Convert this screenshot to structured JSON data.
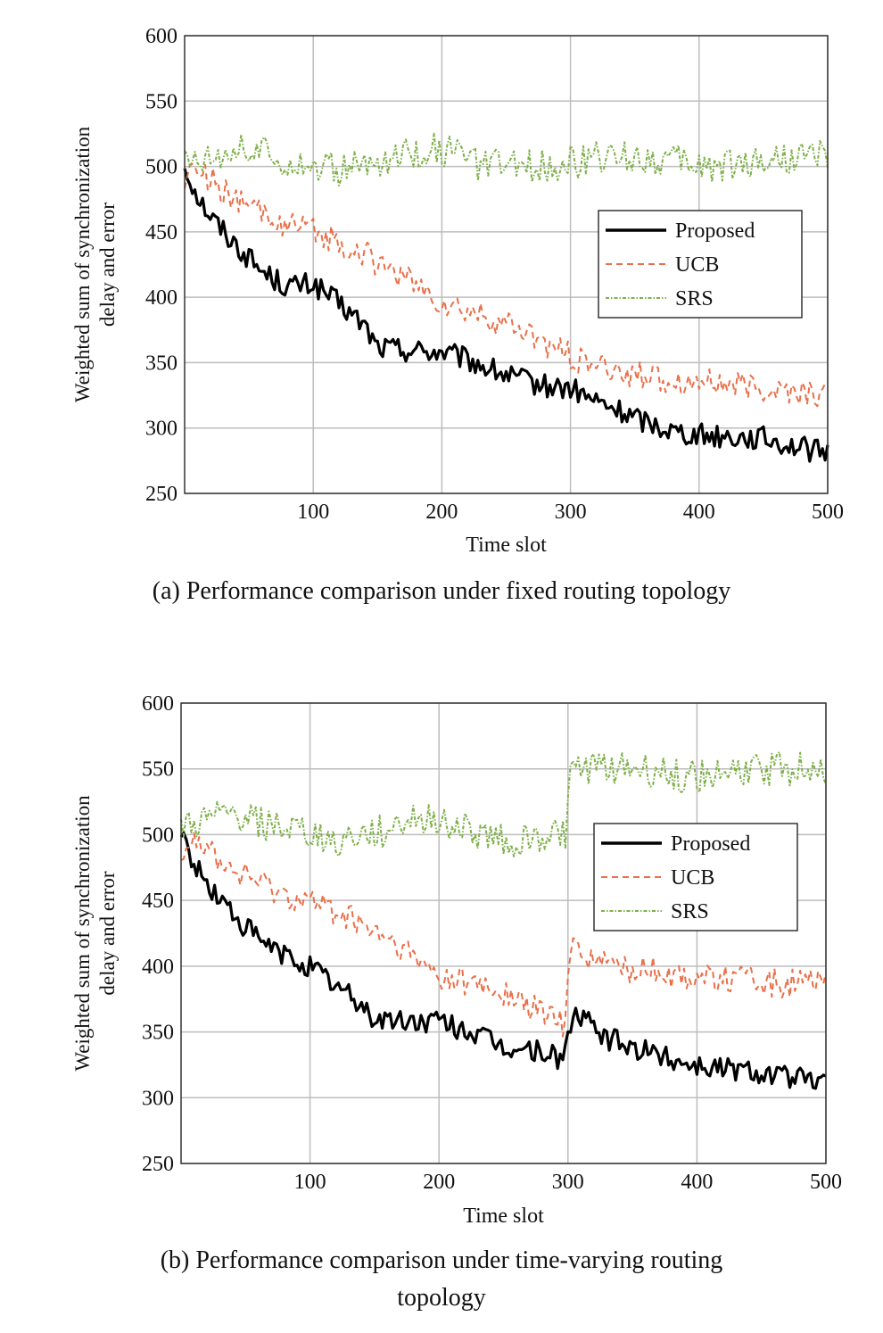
{
  "figure": {
    "captions": [
      "(a) Performance comparison under fixed routing topology",
      "(b) Performance comparison under time-varying routing topology"
    ],
    "colors": {
      "Proposed": "#000000",
      "UCB": "#e9704a",
      "SRS": "#7fb04a",
      "grid": "#bdbdbd",
      "axis": "#333333"
    }
  },
  "chart_data": [
    {
      "type": "line",
      "title": "(a) Performance comparison under fixed routing topology",
      "xlabel": "Time slot",
      "ylabel_lines": [
        "Weighted sum of synchronization",
        "delay and error"
      ],
      "xlim": [
        0,
        500
      ],
      "ylim": [
        250,
        600
      ],
      "xticks": [
        100,
        200,
        300,
        400,
        500
      ],
      "yticks": [
        250,
        300,
        350,
        400,
        450,
        500,
        550,
        600
      ],
      "grid": true,
      "legend_position": "right-middle",
      "series": [
        {
          "name": "Proposed",
          "style": "solid",
          "x": [
            0,
            10,
            20,
            40,
            60,
            80,
            100,
            120,
            140,
            150,
            170,
            200,
            220,
            250,
            280,
            300,
            320,
            350,
            380,
            400,
            450,
            500
          ],
          "y": [
            500,
            478,
            462,
            440,
            420,
            408,
            410,
            395,
            378,
            362,
            360,
            358,
            352,
            340,
            332,
            330,
            320,
            308,
            298,
            295,
            292,
            280
          ]
        },
        {
          "name": "UCB",
          "style": "dashed",
          "x": [
            0,
            10,
            20,
            40,
            60,
            80,
            100,
            120,
            140,
            160,
            180,
            200,
            230,
            260,
            290,
            310,
            340,
            370,
            400,
            450,
            500
          ],
          "y": [
            492,
            500,
            490,
            472,
            465,
            455,
            450,
            442,
            432,
            422,
            408,
            395,
            385,
            375,
            360,
            350,
            342,
            338,
            335,
            330,
            325
          ]
        },
        {
          "name": "SRS",
          "style": "dash-dot",
          "x": [
            0,
            20,
            40,
            60,
            80,
            100,
            120,
            150,
            170,
            190,
            210,
            230,
            260,
            290,
            320,
            350,
            380,
            410,
            450,
            480,
            500
          ],
          "y": [
            505,
            510,
            515,
            510,
            505,
            500,
            498,
            502,
            508,
            515,
            510,
            500,
            500,
            502,
            506,
            508,
            504,
            500,
            505,
            508,
            510
          ]
        }
      ]
    },
    {
      "type": "line",
      "title": "(b) Performance comparison under time-varying routing topology",
      "xlabel": "Time slot",
      "ylabel_lines": [
        "Weighted sum of synchronization",
        "delay and error"
      ],
      "xlim": [
        0,
        500
      ],
      "ylim": [
        250,
        600
      ],
      "xticks": [
        100,
        200,
        300,
        400,
        500
      ],
      "yticks": [
        250,
        300,
        350,
        400,
        450,
        500,
        550,
        600
      ],
      "grid": true,
      "legend_position": "right-middle",
      "series": [
        {
          "name": "Proposed",
          "style": "solid",
          "x": [
            0,
            10,
            20,
            40,
            60,
            80,
            100,
            120,
            140,
            150,
            170,
            200,
            220,
            250,
            280,
            295,
            300,
            305,
            330,
            360,
            400,
            450,
            500
          ],
          "y": [
            500,
            478,
            462,
            440,
            420,
            408,
            400,
            385,
            370,
            360,
            358,
            358,
            352,
            338,
            335,
            330,
            345,
            365,
            345,
            335,
            325,
            320,
            310
          ]
        },
        {
          "name": "UCB",
          "style": "dashed",
          "x": [
            0,
            10,
            20,
            40,
            60,
            80,
            100,
            120,
            140,
            160,
            180,
            200,
            230,
            260,
            290,
            298,
            302,
            320,
            350,
            400,
            450,
            500
          ],
          "y": [
            490,
            500,
            490,
            472,
            465,
            455,
            450,
            442,
            430,
            420,
            405,
            392,
            385,
            375,
            360,
            355,
            420,
            405,
            398,
            392,
            388,
            385
          ]
        },
        {
          "name": "SRS",
          "style": "dash-dot",
          "x": [
            0,
            20,
            40,
            60,
            80,
            100,
            120,
            150,
            170,
            190,
            210,
            230,
            260,
            290,
            298,
            302,
            320,
            350,
            380,
            410,
            450,
            480,
            500
          ],
          "y": [
            505,
            510,
            515,
            510,
            505,
            500,
            495,
            500,
            508,
            515,
            508,
            500,
            495,
            500,
            502,
            548,
            550,
            550,
            545,
            545,
            550,
            550,
            550
          ]
        }
      ]
    }
  ]
}
